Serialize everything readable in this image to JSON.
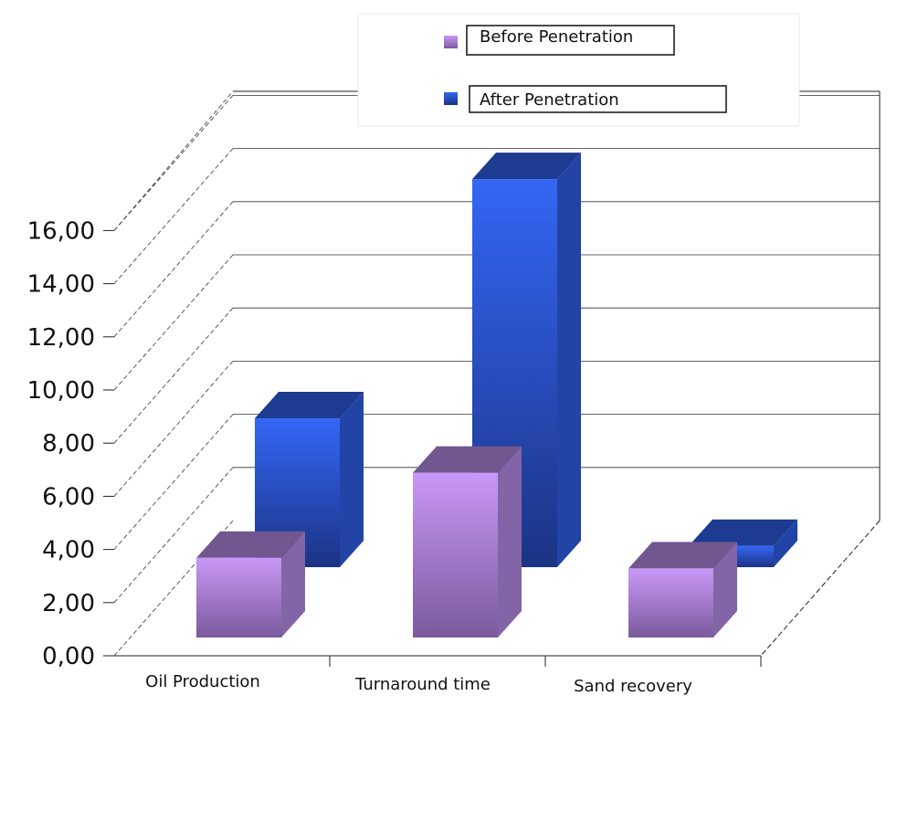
{
  "chart_data": {
    "type": "bar",
    "categories": [
      "Oil Production",
      "Turnaround time",
      "Sand recovery"
    ],
    "series": [
      {
        "name": "Before Penetration",
        "values": [
          3.0,
          6.2,
          2.6
        ],
        "color": "#b48ce6"
      },
      {
        "name": "After Penetration",
        "values": [
          5.6,
          14.6,
          0.8
        ],
        "color": "#2f5fe8"
      }
    ],
    "y_ticks": [
      "0,00",
      "2,00",
      "4,00",
      "6,00",
      "8,00",
      "10,00",
      "12,00",
      "14,00",
      "16,00"
    ],
    "ylim": [
      0,
      16
    ],
    "grid": true,
    "legend_position": "top-right",
    "style": "3d-clustered-column"
  }
}
